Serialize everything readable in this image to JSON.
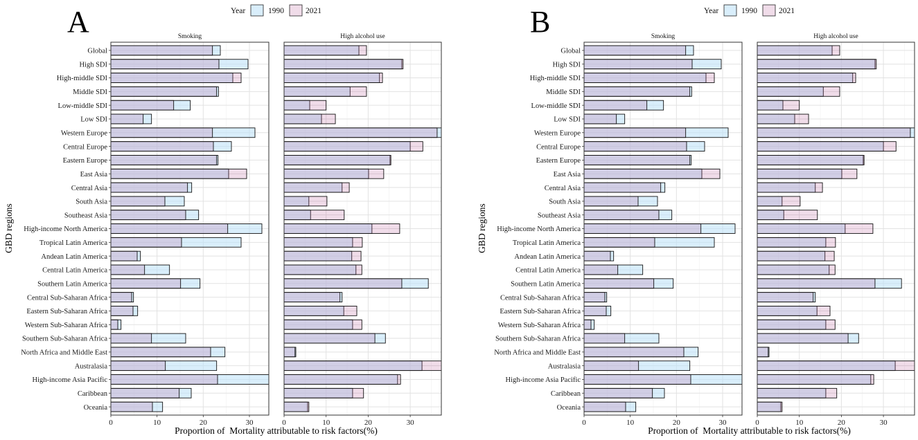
{
  "chart_data": [
    {
      "panel": "A",
      "type": "bar",
      "ylabel": "GBD regions",
      "xlabel": "Proportion of  Mortality attributable to risk factors(%)",
      "legend": {
        "title": "Year",
        "entries": [
          "1990",
          "2021"
        ],
        "position": "top"
      },
      "colors": {
        "1990": "#bfe2f8",
        "2021": "#b45091"
      },
      "grid": true,
      "categories": [
        "Global",
        "High SDI",
        "High-middle SDI",
        "Middle SDI",
        "Low-middle SDI",
        "Low SDI",
        "Western Europe",
        "Central Europe",
        "Eastern Europe",
        "East Asia",
        "Central Asia",
        "South Asia",
        "Southeast Asia",
        "High-income North America",
        "Tropical Latin America",
        "Andean Latin America",
        "Central Latin America",
        "Southern Latin America",
        "Central Sub-Saharan Africa",
        "Eastern Sub-Saharan Africa",
        "Western Sub-Saharan Africa",
        "Southern Sub-Saharan Africa",
        "North Africa and Middle East",
        "Australasia",
        "High-income Asia Pacific",
        "Caribbean",
        "Oceania"
      ],
      "facets": [
        {
          "title": "Smoking",
          "xlim": [
            0,
            34.2
          ],
          "xticks": [
            0,
            10,
            20,
            30
          ],
          "series": [
            {
              "name": "1990",
              "values": [
                23.7,
                29.7,
                26.4,
                23.3,
                17.2,
                8.8,
                31.2,
                26.1,
                23.2,
                25.5,
                17.5,
                15.9,
                19.0,
                32.7,
                28.2,
                6.4,
                12.7,
                19.3,
                4.9,
                5.8,
                2.2,
                16.2,
                24.7,
                22.9,
                34.5,
                17.4,
                11.2
              ]
            },
            {
              "name": "2021",
              "values": [
                22.0,
                23.4,
                28.2,
                22.9,
                13.6,
                7.0,
                22.0,
                22.2,
                22.9,
                29.4,
                16.6,
                11.7,
                16.2,
                25.3,
                15.3,
                5.7,
                7.3,
                15.1,
                4.5,
                4.8,
                1.5,
                8.8,
                21.6,
                11.8,
                23.1,
                14.8,
                9.0
              ]
            }
          ]
        },
        {
          "title": "High alcohol use",
          "xlim": [
            0,
            37.4
          ],
          "xticks": [
            0,
            10,
            20,
            30
          ],
          "series": [
            {
              "name": "1990",
              "values": [
                17.8,
                28.0,
                22.7,
                15.7,
                6.1,
                8.9,
                37.6,
                30.0,
                25.2,
                20.1,
                13.8,
                5.9,
                6.3,
                20.9,
                16.3,
                16.1,
                17.1,
                34.3,
                13.8,
                14.2,
                16.3,
                24.1,
                2.8,
                32.8,
                27.0,
                16.3,
                5.6
              ]
            },
            {
              "name": "2021",
              "values": [
                19.6,
                28.3,
                23.4,
                19.6,
                10.0,
                12.2,
                36.4,
                33.0,
                25.4,
                23.7,
                15.5,
                10.2,
                14.3,
                27.5,
                18.6,
                18.3,
                18.5,
                28.0,
                13.3,
                17.3,
                18.5,
                21.6,
                2.6,
                37.6,
                27.7,
                18.9,
                5.9
              ]
            }
          ]
        }
      ]
    },
    {
      "panel": "B",
      "type": "bar",
      "ylabel": "GBD regions",
      "xlabel": "Proportion of  Mortality attributable to risk factors(%)",
      "legend": {
        "title": "Year",
        "entries": [
          "1990",
          "2021"
        ],
        "position": "top"
      },
      "colors": {
        "1990": "#bfe2f8",
        "2021": "#b45091"
      },
      "grid": true,
      "categories": [
        "Global",
        "High SDI",
        "High-middle SDI",
        "Middle SDI",
        "Low-middle SDI",
        "Low SDI",
        "Western Europe",
        "Central Europe",
        "Eastern Europe",
        "East Asia",
        "Central Asia",
        "South Asia",
        "Southeast Asia",
        "High-income North America",
        "Tropical Latin America",
        "Andean Latin America",
        "Central Latin America",
        "Southern Latin America",
        "Central Sub-Saharan Africa",
        "Eastern Sub-Saharan Africa",
        "Western Sub-Saharan Africa",
        "Southern Sub-Saharan Africa",
        "North Africa and Middle East",
        "Australasia",
        "High-income Asia Pacific",
        "Caribbean",
        "Oceania"
      ],
      "facets": [
        {
          "title": "Smoking",
          "xlim": [
            0,
            34.2
          ],
          "xticks": [
            0,
            10,
            20,
            30
          ],
          "series": [
            {
              "name": "1990",
              "values": [
                23.7,
                29.7,
                26.4,
                23.3,
                17.2,
                8.8,
                31.2,
                26.1,
                23.2,
                25.5,
                17.5,
                15.9,
                19.0,
                32.7,
                28.2,
                6.4,
                12.7,
                19.3,
                4.9,
                5.8,
                2.2,
                16.2,
                24.7,
                22.9,
                34.5,
                17.4,
                11.2
              ]
            },
            {
              "name": "2021",
              "values": [
                22.0,
                23.4,
                28.2,
                22.9,
                13.6,
                7.0,
                22.0,
                22.2,
                22.9,
                29.4,
                16.6,
                11.7,
                16.2,
                25.3,
                15.3,
                5.7,
                7.3,
                15.1,
                4.5,
                4.8,
                1.5,
                8.8,
                21.6,
                11.8,
                23.1,
                14.8,
                9.0
              ]
            }
          ]
        },
        {
          "title": "High alcohol use",
          "xlim": [
            0,
            37.4
          ],
          "xticks": [
            0,
            10,
            20,
            30
          ],
          "series": [
            {
              "name": "1990",
              "values": [
                17.8,
                28.0,
                22.7,
                15.7,
                6.1,
                8.9,
                37.6,
                30.0,
                25.2,
                20.1,
                13.8,
                5.9,
                6.3,
                20.9,
                16.3,
                16.1,
                17.1,
                34.3,
                13.8,
                14.2,
                16.3,
                24.1,
                2.8,
                32.8,
                27.0,
                16.3,
                5.6
              ]
            },
            {
              "name": "2021",
              "values": [
                19.6,
                28.3,
                23.4,
                19.6,
                10.0,
                12.2,
                36.4,
                33.0,
                25.4,
                23.7,
                15.5,
                10.2,
                14.3,
                27.5,
                18.6,
                18.3,
                18.5,
                28.0,
                13.3,
                17.3,
                18.5,
                21.6,
                2.6,
                37.6,
                27.7,
                18.9,
                5.9
              ]
            }
          ]
        }
      ]
    }
  ]
}
